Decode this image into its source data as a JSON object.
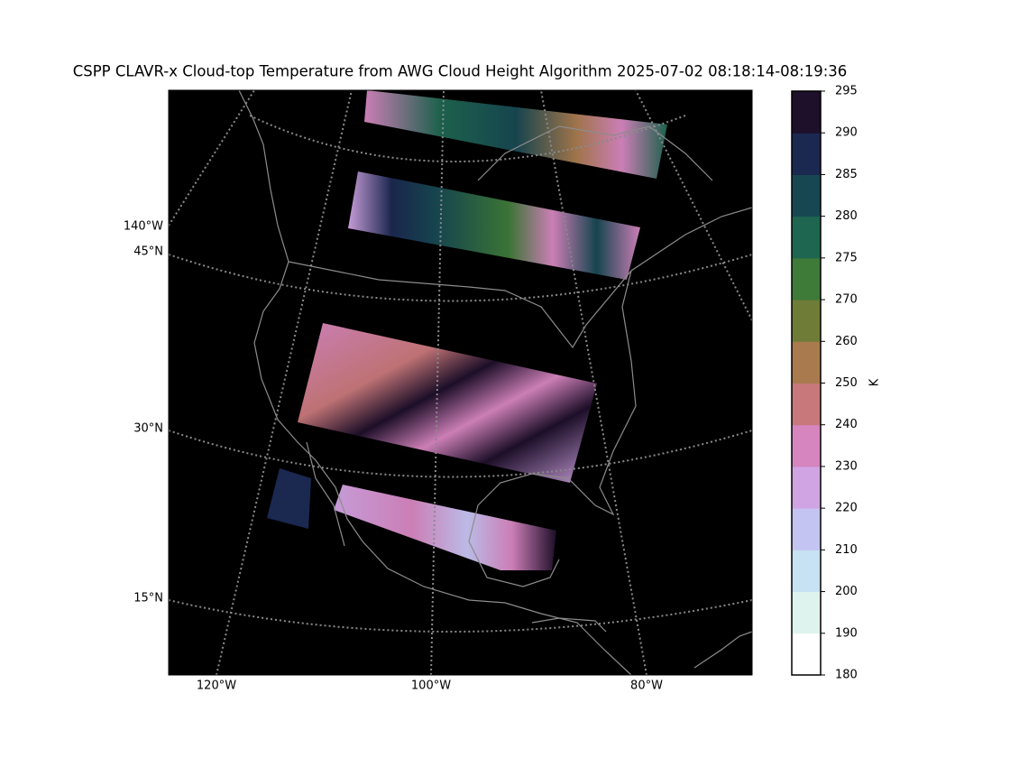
{
  "title": "CSPP CLAVR-x Cloud-top Temperature from AWG Cloud Height Algorithm 2025-07-02 08:18:14-08:19:36",
  "map": {
    "left_labels": [
      "140°W",
      "45°N",
      "30°N",
      "15°N"
    ],
    "bottom_labels": [
      "120°W",
      "100°W",
      "80°W"
    ]
  },
  "colorbar": {
    "label": "K",
    "ticks": [
      180,
      190,
      200,
      210,
      220,
      230,
      240,
      250,
      260,
      270,
      275,
      280,
      285,
      290,
      295
    ],
    "colors": [
      "#ffffff",
      "#dff3ee",
      "#c7e2f2",
      "#c4c4f2",
      "#d0a4e3",
      "#d685bf",
      "#c8787a",
      "#a87a4e",
      "#6f7c37",
      "#3e7a38",
      "#1e6650",
      "#174852",
      "#1b2850",
      "#1e0f2a",
      "#000000"
    ]
  }
}
